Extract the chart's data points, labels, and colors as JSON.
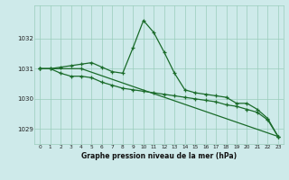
{
  "title": "Graphe pression niveau de la mer (hPa)",
  "bg_color": "#ceeaea",
  "grid_color": "#99ccbb",
  "line_color": "#1a6b2a",
  "xlim": [
    -0.5,
    23.5
  ],
  "ylim": [
    1028.5,
    1033.1
  ],
  "yticks": [
    1029,
    1030,
    1031,
    1032
  ],
  "xticks": [
    0,
    1,
    2,
    3,
    4,
    5,
    6,
    7,
    8,
    9,
    10,
    11,
    12,
    13,
    14,
    15,
    16,
    17,
    18,
    19,
    20,
    21,
    22,
    23
  ],
  "series1_x": [
    0,
    1,
    2,
    3,
    4,
    5,
    6,
    7,
    8,
    9,
    10,
    11,
    12,
    13,
    14,
    15,
    16,
    17,
    18,
    19,
    20,
    21,
    22,
    23
  ],
  "series1_y": [
    1031.0,
    1031.0,
    1031.05,
    1031.1,
    1031.15,
    1031.2,
    1031.05,
    1030.9,
    1030.85,
    1031.7,
    1032.6,
    1032.2,
    1031.55,
    1030.85,
    1030.3,
    1030.2,
    1030.15,
    1030.1,
    1030.05,
    1029.85,
    1029.85,
    1029.65,
    1029.35,
    1028.75
  ],
  "series2_x": [
    0,
    1,
    2,
    3,
    4,
    5,
    6,
    7,
    8,
    9,
    10,
    11,
    12,
    13,
    14,
    15,
    16,
    17,
    18,
    19,
    20,
    21,
    22,
    23
  ],
  "series2_y": [
    1031.0,
    1031.0,
    1030.85,
    1030.75,
    1030.75,
    1030.7,
    1030.55,
    1030.45,
    1030.35,
    1030.3,
    1030.25,
    1030.2,
    1030.15,
    1030.1,
    1030.05,
    1030.0,
    1029.95,
    1029.9,
    1029.8,
    1029.75,
    1029.65,
    1029.55,
    1029.3,
    1028.75
  ],
  "series3_x": [
    0,
    4,
    23
  ],
  "series3_y": [
    1031.0,
    1031.0,
    1028.75
  ]
}
